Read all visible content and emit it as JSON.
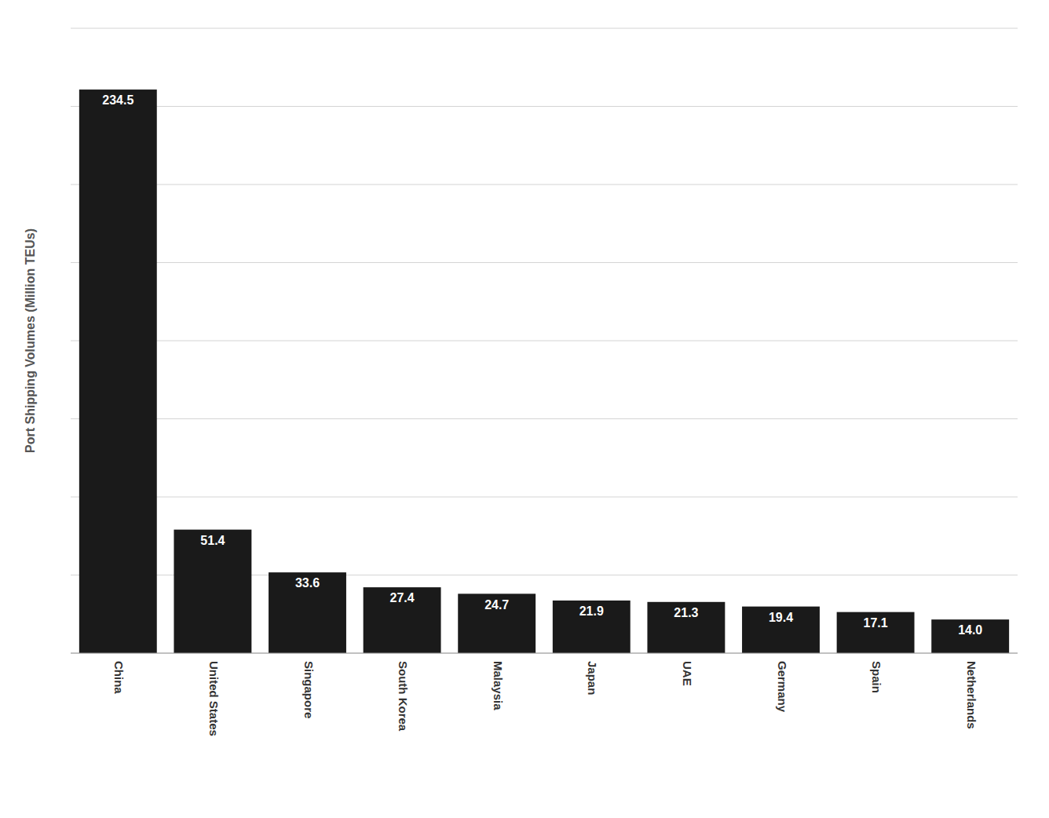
{
  "chart_data": {
    "type": "bar",
    "ylabel": "Port Shipping Volumes (Million TEUs)",
    "categories": [
      "China",
      "United States",
      "Singapore",
      "South Korea",
      "Malaysia",
      "Japan",
      "UAE",
      "Germany",
      "Spain",
      "Netherlands"
    ],
    "values": [
      234.5,
      51.4,
      33.6,
      27.4,
      24.7,
      21.9,
      21.3,
      19.4,
      17.1,
      14.0
    ],
    "value_labels": [
      "234.5",
      "51.4",
      "33.6",
      "27.4",
      "24.7",
      "21.9",
      "21.3",
      "19.4",
      "17.1",
      "14.0"
    ],
    "color": "#1a1a1a",
    "ylim": [
      0,
      260
    ],
    "yticks": [
      0,
      32.5,
      65,
      97.5,
      130,
      162.5,
      195,
      227.5,
      260
    ],
    "grid": true,
    "data_labels": true,
    "tick_labels": "x"
  }
}
